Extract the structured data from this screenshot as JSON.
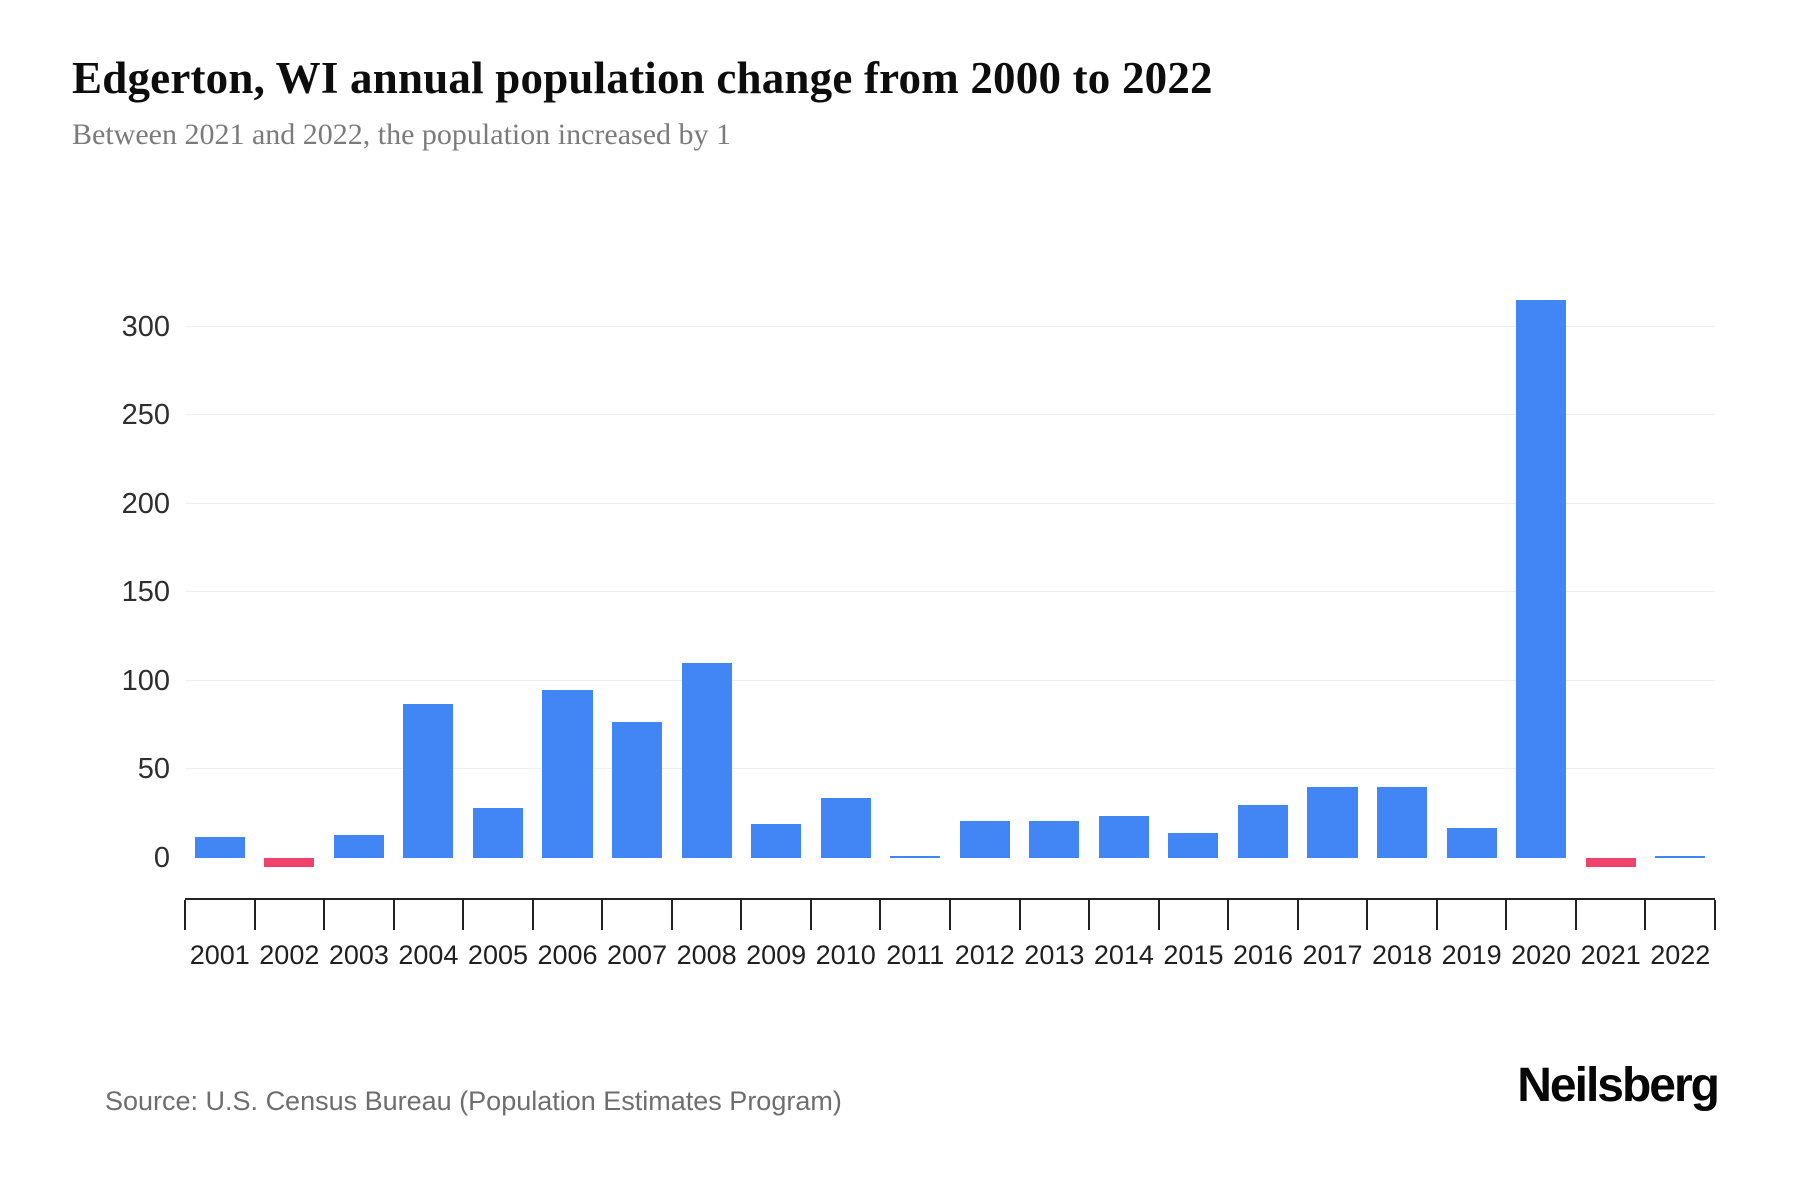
{
  "page": {
    "title": "Edgerton, WI annual population change from 2000 to 2022",
    "subtitle": "Between 2021 and 2022, the population increased by 1",
    "source": "Source: U.S. Census Bureau (Population Estimates Program)",
    "brand": "Neilsberg"
  },
  "colors": {
    "positive_bar": "#4285f4",
    "negative_bar": "#f0436b",
    "gridline": "#efefef",
    "axis": "#222222",
    "title_text": "#0d0d0d",
    "subtitle_text": "#7b7b7b",
    "tick_label": "#2e2e2e"
  },
  "chart_data": {
    "type": "bar",
    "title": "Edgerton, WI annual population change from 2000 to 2022",
    "subtitle": "Between 2021 and 2022, the population increased by 1",
    "categories": [
      "2001",
      "2002",
      "2003",
      "2004",
      "2005",
      "2006",
      "2007",
      "2008",
      "2009",
      "2010",
      "2011",
      "2012",
      "2013",
      "2014",
      "2015",
      "2016",
      "2017",
      "2018",
      "2019",
      "2020",
      "2021",
      "2022"
    ],
    "values": [
      12,
      -5,
      13,
      87,
      28,
      95,
      77,
      110,
      19,
      34,
      1,
      21,
      21,
      24,
      14,
      30,
      40,
      40,
      17,
      315,
      -5,
      1
    ],
    "yticks": [
      0,
      50,
      100,
      150,
      200,
      250,
      300
    ],
    "ylim": [
      -20,
      350
    ],
    "xlabel": "",
    "ylabel": "",
    "grid": "horizontal gridlines at labeled y ticks, no zero line",
    "legend": "none"
  }
}
